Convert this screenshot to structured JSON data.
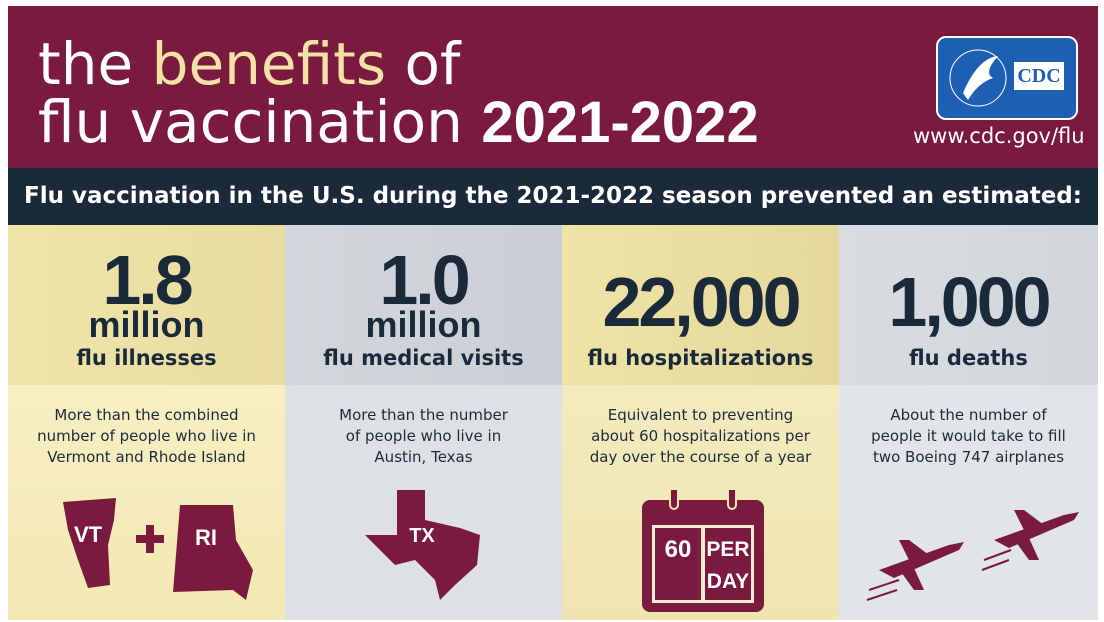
{
  "header": {
    "title": {
      "the": "the",
      "benefits": "benefits",
      "of": "of",
      "flu_vaccination": "flu vaccination",
      "season": "2021-2022"
    },
    "logo": "CDC",
    "url": "www.cdc.gov/flu"
  },
  "subtitle": "Flu vaccination in the U.S. during the 2021-2022 season prevented an estimated:",
  "panels": [
    {
      "number": "1.8",
      "unit": "million",
      "label": "flu illnesses",
      "description": [
        "More than the combined",
        "number of people who live in",
        "Vermont and Rhode Island"
      ],
      "icon": [
        "VT",
        "RI"
      ]
    },
    {
      "number": "1.0",
      "unit": "million",
      "label": "flu medical visits",
      "description": [
        "More than the number",
        "of people who live in",
        "Austin, Texas"
      ],
      "icon": [
        "TX"
      ]
    },
    {
      "number": "22,000",
      "label": "flu hospitalizations",
      "description": [
        "Equivalent to preventing",
        "about 60 hospitalizations per",
        "day over the course of a year"
      ],
      "icon": [
        "60",
        "PER",
        "DAY"
      ]
    },
    {
      "number": "1,000",
      "label": "flu deaths",
      "description": [
        "About the number of",
        "people it would take to fill",
        "two Boeing 747 airplanes"
      ]
    }
  ]
}
